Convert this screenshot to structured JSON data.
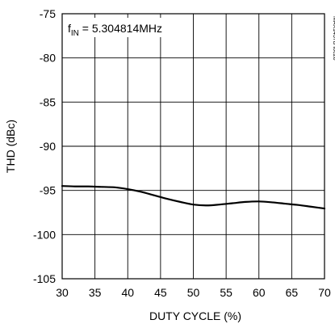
{
  "chart_data": {
    "type": "line",
    "xlabel": "DUTY CYCLE (%)",
    "ylabel": "THD (dBc)",
    "xlim": [
      30,
      70
    ],
    "ylim": [
      -105,
      -75
    ],
    "xticks": [
      30,
      35,
      40,
      45,
      50,
      55,
      60,
      65,
      70
    ],
    "yticks": [
      -75,
      -80,
      -85,
      -90,
      -95,
      -100,
      -105
    ],
    "grid": true,
    "annotation": {
      "main": "f",
      "sub": "IN",
      "rest": " = 5.304814MHz"
    },
    "figure_id": "MAX1437B toc28",
    "series": [
      {
        "x": [
          30,
          32,
          34,
          36,
          38,
          40,
          42,
          44,
          46,
          48,
          50,
          52,
          54,
          56,
          58,
          60,
          62,
          64,
          66,
          68,
          70
        ],
        "y": [
          -94.5,
          -94.55,
          -94.55,
          -94.6,
          -94.65,
          -94.85,
          -95.15,
          -95.55,
          -95.95,
          -96.3,
          -96.6,
          -96.7,
          -96.6,
          -96.45,
          -96.3,
          -96.25,
          -96.35,
          -96.5,
          -96.65,
          -96.85,
          -97.05
        ]
      }
    ]
  }
}
